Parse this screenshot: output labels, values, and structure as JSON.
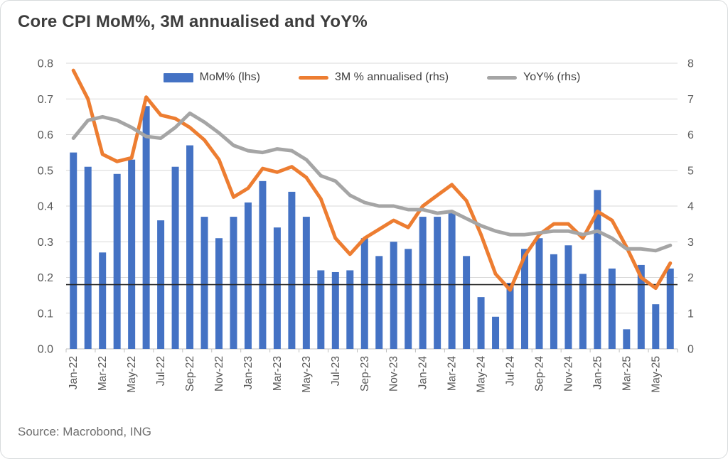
{
  "header": {
    "title": "Core CPI MoM%, 3M annualised and YoY%"
  },
  "footer": {
    "source": "Source: Macrobond, ING"
  },
  "colors": {
    "bar_blue": "#4472C4",
    "line_orange": "#ED7D31",
    "line_gray": "#A5A5A5",
    "grid": "#d9d9d9",
    "axis_line": "#bfbfbf",
    "reference_line": "#262626",
    "tick_text": "#595959"
  },
  "chart_data": {
    "type": "bar",
    "subtype": "combo-bar-line",
    "title": "Core CPI MoM%, 3M annualised and YoY%",
    "grid": true,
    "legend_position": "top-center",
    "categories": [
      "Jan-22",
      "Feb-22",
      "Mar-22",
      "Apr-22",
      "May-22",
      "Jun-22",
      "Jul-22",
      "Aug-22",
      "Sep-22",
      "Oct-22",
      "Nov-22",
      "Dec-22",
      "Jan-23",
      "Feb-23",
      "Mar-23",
      "Apr-23",
      "May-23",
      "Jun-23",
      "Jul-23",
      "Aug-23",
      "Sep-23",
      "Oct-23",
      "Nov-23",
      "Dec-23",
      "Jan-24",
      "Feb-24",
      "Mar-24",
      "Apr-24",
      "May-24",
      "Jun-24",
      "Jul-24",
      "Aug-24",
      "Sep-24",
      "Oct-24",
      "Nov-24",
      "Dec-24",
      "Jan-25",
      "Feb-25",
      "Mar-25",
      "Apr-25",
      "May-25",
      "Jun-25"
    ],
    "x_tick_labels": [
      "Jan-22",
      "Mar-22",
      "May-22",
      "Jul-22",
      "Sep-22",
      "Nov-22",
      "Jan-23",
      "Mar-23",
      "May-23",
      "Jul-23",
      "Sep-23",
      "Nov-23",
      "Jan-24",
      "Mar-24",
      "May-24",
      "Jul-24",
      "Sep-24",
      "Nov-24",
      "Jan-25",
      "Mar-25",
      "May-25"
    ],
    "left_axis": {
      "min": 0.0,
      "max": 0.8,
      "ticks": [
        "0.0",
        "0.1",
        "0.2",
        "0.3",
        "0.4",
        "0.5",
        "0.6",
        "0.7",
        "0.8"
      ]
    },
    "right_axis": {
      "min": 0,
      "max": 8,
      "ticks": [
        "0",
        "1",
        "2",
        "3",
        "4",
        "5",
        "6",
        "7",
        "8"
      ]
    },
    "reference_line": {
      "axis": "right",
      "value": 1.8,
      "color": "#262626"
    },
    "series": [
      {
        "name": "MoM% (lhs)",
        "type": "bar",
        "axis": "left",
        "color": "#4472C4",
        "values": [
          0.55,
          0.51,
          0.27,
          0.49,
          0.53,
          0.68,
          0.36,
          0.51,
          0.57,
          0.37,
          0.31,
          0.37,
          0.41,
          0.47,
          0.34,
          0.44,
          0.37,
          0.22,
          0.215,
          0.22,
          0.31,
          0.26,
          0.3,
          0.28,
          0.37,
          0.37,
          0.38,
          0.26,
          0.145,
          0.09,
          0.185,
          0.28,
          0.31,
          0.265,
          0.29,
          0.21,
          0.445,
          0.225,
          0.055,
          0.235,
          0.125,
          0.225
        ]
      },
      {
        "name": "3M % annualised (rhs)",
        "type": "line",
        "axis": "right",
        "color": "#ED7D31",
        "values": [
          7.8,
          7.0,
          5.45,
          5.25,
          5.35,
          7.05,
          6.55,
          6.45,
          6.2,
          5.85,
          5.3,
          4.25,
          4.5,
          5.05,
          4.95,
          5.1,
          4.8,
          4.2,
          3.1,
          2.65,
          3.1,
          3.35,
          3.6,
          3.4,
          4.0,
          4.3,
          4.6,
          4.15,
          3.2,
          2.1,
          1.65,
          2.6,
          3.2,
          3.5,
          3.5,
          3.1,
          3.85,
          3.6,
          2.85,
          2.0,
          1.7,
          2.4
        ]
      },
      {
        "name": "YoY% (rhs)",
        "type": "line",
        "axis": "right",
        "color": "#A5A5A5",
        "values": [
          5.9,
          6.4,
          6.5,
          6.4,
          6.2,
          5.95,
          5.9,
          6.2,
          6.6,
          6.35,
          6.05,
          5.7,
          5.55,
          5.5,
          5.6,
          5.55,
          5.3,
          4.85,
          4.7,
          4.3,
          4.1,
          4.0,
          4.0,
          3.9,
          3.9,
          3.8,
          3.85,
          3.65,
          3.45,
          3.3,
          3.2,
          3.2,
          3.25,
          3.3,
          3.3,
          3.2,
          3.3,
          3.1,
          2.8,
          2.8,
          2.75,
          2.9
        ]
      }
    ]
  }
}
